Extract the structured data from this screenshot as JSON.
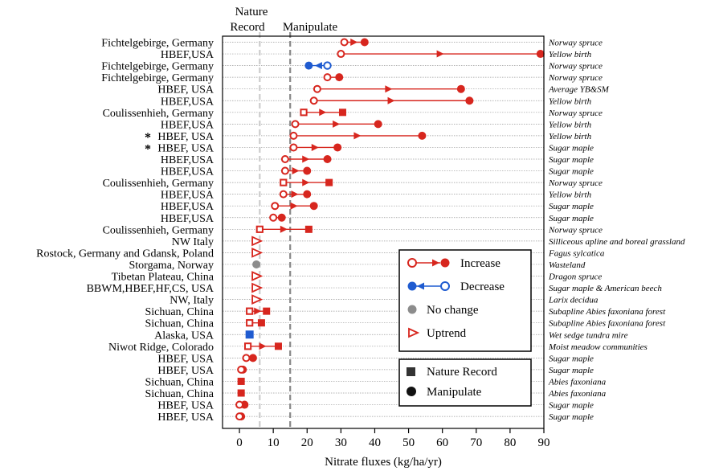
{
  "chart_data": {
    "type": "scatter",
    "xlabel": "Nitrate fluxes (kg/ha/yr)",
    "xlim": [
      -5,
      90
    ],
    "xticks": [
      0,
      10,
      20,
      30,
      40,
      50,
      60,
      70,
      80,
      90
    ],
    "reference_lines": [
      {
        "label": "Nature Record",
        "value": 6,
        "style": "dashed",
        "color": "#cccccc"
      },
      {
        "label": "Manipulate",
        "value": 15,
        "style": "dashed",
        "color": "#888888"
      }
    ],
    "sites": [
      {
        "label": "Fichtelgebirge, Germany",
        "vegetation": "Norway spruce",
        "start": 31,
        "end": 37,
        "kind": "increase",
        "marker": "circle"
      },
      {
        "label": "HBEF,USA",
        "vegetation": "Yellow birth",
        "start": 30,
        "end": 89,
        "kind": "increase",
        "marker": "circle"
      },
      {
        "label": "Fichtelgebirge, Germany",
        "vegetation": "Norway spruce",
        "start": 26,
        "end": 20.5,
        "kind": "decrease",
        "marker": "circle"
      },
      {
        "label": "Fichtelgebirge, Germany",
        "vegetation": "Norway spruce",
        "start": 26,
        "end": 29.5,
        "kind": "increase",
        "marker": "circle"
      },
      {
        "label": "HBEF, USA",
        "vegetation": "Average YB&SM",
        "start": 23,
        "end": 65.5,
        "kind": "increase",
        "marker": "circle"
      },
      {
        "label": "HBEF,USA",
        "vegetation": "Yellow birth",
        "start": 22,
        "end": 68,
        "kind": "increase",
        "marker": "circle"
      },
      {
        "label": "Coulissenhieh, Germany",
        "vegetation": "Norway spruce",
        "start": 19,
        "end": 30.5,
        "kind": "increase",
        "marker": "square"
      },
      {
        "label": "HBEF,USA",
        "vegetation": "Yellow birth",
        "start": 16.5,
        "end": 41,
        "kind": "increase",
        "marker": "circle"
      },
      {
        "label": "HBEF, USA",
        "star": "*",
        "vegetation": "Yellow birth",
        "start": 16,
        "end": 54,
        "kind": "increase",
        "marker": "circle"
      },
      {
        "label": "HBEF, USA",
        "star": "*",
        "vegetation": "Sugar maple",
        "start": 16,
        "end": 29,
        "kind": "increase",
        "marker": "circle"
      },
      {
        "label": "HBEF,USA",
        "vegetation": "Sugar maple",
        "start": 13.5,
        "end": 26,
        "kind": "increase",
        "marker": "circle"
      },
      {
        "label": "HBEF,USA",
        "vegetation": "Sugar maple",
        "start": 13.5,
        "end": 20,
        "kind": "increase",
        "marker": "circle"
      },
      {
        "label": "Coulissenhieh, Germany",
        "vegetation": "Norway spruce",
        "start": 13,
        "end": 26.5,
        "kind": "increase",
        "marker": "square"
      },
      {
        "label": "HBEF,USA",
        "vegetation": "Yellow birth",
        "start": 13,
        "end": 20,
        "kind": "increase",
        "marker": "circle"
      },
      {
        "label": "HBEF,USA",
        "vegetation": "Sugar maple",
        "start": 10.5,
        "end": 22,
        "kind": "increase",
        "marker": "circle"
      },
      {
        "label": "HBEF,USA",
        "vegetation": "Sugar maple",
        "start": 10,
        "end": 12.5,
        "kind": "increase",
        "marker": "circle"
      },
      {
        "label": "Coulissenhieh, Germany",
        "vegetation": "Norway spruce",
        "start": 6,
        "end": 20.5,
        "kind": "increase",
        "marker": "square"
      },
      {
        "label": "NW Italy",
        "vegetation": "Silliceous apline and boreal grassland",
        "start": 5,
        "kind": "uptrend"
      },
      {
        "label": "Rostock, Germany and Gdansk, Poland",
        "vegetation": "Fagus sylcatica",
        "start": 5,
        "kind": "uptrend"
      },
      {
        "label": "Storgama, Norway",
        "vegetation": "Wasteland",
        "start": 5,
        "kind": "nochange",
        "marker": "circle"
      },
      {
        "label": "Tibetan Plateau, China",
        "vegetation": "Dragon spruce",
        "start": 5,
        "kind": "uptrend"
      },
      {
        "label": "BBWM,HBEF,HF,CS, USA",
        "vegetation": "Sugar maple & American beech",
        "start": 5,
        "kind": "uptrend"
      },
      {
        "label": "NW, Italy",
        "vegetation": "Larix decidua",
        "start": 5,
        "kind": "uptrend"
      },
      {
        "label": "Sichuan, China",
        "vegetation": "Subapline Abies faxoniana forest",
        "start": 3,
        "end": 8,
        "kind": "increase",
        "marker": "square"
      },
      {
        "label": "Sichuan, China",
        "vegetation": "Subapline Abies faxoniana forest",
        "start": 3,
        "end": 6.5,
        "kind": "increase",
        "marker": "square"
      },
      {
        "label": "Alaska, USA",
        "vegetation": "Wet sedge tundra mire",
        "start": 3,
        "kind": "nochange-blue",
        "marker": "square"
      },
      {
        "label": "Niwot Ridge, Colorado",
        "vegetation": "Moist meadow communities",
        "start": 2.5,
        "end": 11.5,
        "kind": "increase",
        "marker": "square"
      },
      {
        "label": "HBEF, USA",
        "vegetation": "Sugar maple",
        "start": 2,
        "end": 4,
        "kind": "increase",
        "marker": "circle"
      },
      {
        "label": "HBEF, USA",
        "vegetation": "Sugar maple",
        "start": 0.5,
        "end": 1,
        "kind": "increase",
        "marker": "circle"
      },
      {
        "label": "Sichuan, China",
        "vegetation": "Abies faxoniana",
        "start": 0.5,
        "kind": "solid",
        "marker": "square"
      },
      {
        "label": "Sichuan, China",
        "vegetation": "Abies faxoniana",
        "start": 0.5,
        "kind": "solid",
        "marker": "square"
      },
      {
        "label": "HBEF, USA",
        "vegetation": "Sugar maple",
        "start": 0,
        "end": 1.5,
        "kind": "increase",
        "marker": "circle"
      },
      {
        "label": "HBEF, USA",
        "vegetation": "Sugar maple",
        "start": 0,
        "end": 0.5,
        "kind": "increase",
        "marker": "circle"
      }
    ],
    "legend": {
      "placement": "right",
      "direction": [
        "Increase",
        "Decrease",
        "No change",
        "Uptrend"
      ],
      "marker": [
        "Nature Record",
        "Manipulate"
      ]
    },
    "grid": true,
    "colors": {
      "increase": "#d7261e",
      "decrease": "#1f5bd0",
      "nochange": "#8c8c8c",
      "axis": "#000000",
      "natureLine": "#cccccc",
      "manipLine": "#888888"
    }
  }
}
